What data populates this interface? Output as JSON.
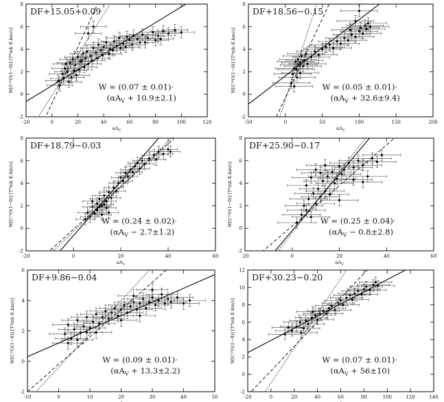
{
  "chart_data": [
    {
      "type": "scatter",
      "title": "DF+15.05+0.09",
      "xlabel": "αA",
      "xlabel_sub": "V",
      "ylabel": "W[C¹⁸O(1−0)] [T*mb K.km/s]",
      "xlim": [
        -20,
        120
      ],
      "ylim": [
        -2,
        8
      ],
      "xticks": [
        -20,
        0,
        20,
        40,
        60,
        80,
        100,
        120
      ],
      "yticks": [
        -2,
        0,
        2,
        4,
        6,
        8
      ],
      "equation_line1": "W = (0.07 ± 0.01)·",
      "equation_line2": "(αA",
      "equation_line2_sub": "V",
      "equation_line2_tail": " + 10.9±2.1)",
      "lines": [
        {
          "style": "solid",
          "slope": 0.07,
          "intercept": 0.76
        },
        {
          "style": "dotted",
          "slope": 0.18,
          "intercept": -0.1
        },
        {
          "style": "dashed",
          "slope": 0.25,
          "intercept": -0.8
        }
      ],
      "points": [
        [
          5,
          1.2
        ],
        [
          8,
          1.8
        ],
        [
          10,
          2.3
        ],
        [
          12,
          2.0
        ],
        [
          14,
          2.8
        ],
        [
          15,
          1.5
        ],
        [
          16,
          3.1
        ],
        [
          18,
          2.6
        ],
        [
          20,
          3.3
        ],
        [
          22,
          2.9
        ],
        [
          24,
          3.6
        ],
        [
          25,
          2.4
        ],
        [
          27,
          3.8
        ],
        [
          30,
          3.4
        ],
        [
          32,
          4.1
        ],
        [
          34,
          3.7
        ],
        [
          36,
          4.4
        ],
        [
          38,
          3.9
        ],
        [
          40,
          4.2
        ],
        [
          42,
          4.6
        ],
        [
          45,
          4.0
        ],
        [
          48,
          4.7
        ],
        [
          50,
          4.3
        ],
        [
          52,
          5.0
        ],
        [
          55,
          4.5
        ],
        [
          58,
          5.1
        ],
        [
          60,
          4.8
        ],
        [
          63,
          5.2
        ],
        [
          66,
          4.9
        ],
        [
          70,
          5.3
        ],
        [
          74,
          5.0
        ],
        [
          78,
          5.5
        ],
        [
          82,
          5.2
        ],
        [
          86,
          5.6
        ],
        [
          90,
          5.4
        ],
        [
          95,
          5.7
        ],
        [
          100,
          5.5
        ],
        [
          6,
          0.8
        ],
        [
          9,
          1.4
        ],
        [
          11,
          2.7
        ],
        [
          13,
          1.1
        ],
        [
          17,
          2.1
        ],
        [
          19,
          1.7
        ],
        [
          21,
          2.2
        ],
        [
          23,
          3.0
        ],
        [
          26,
          3.2
        ],
        [
          28,
          2.7
        ],
        [
          31,
          3.0
        ],
        [
          35,
          3.2
        ],
        [
          39,
          3.5
        ],
        [
          44,
          3.6
        ],
        [
          47,
          3.9
        ],
        [
          53,
          4.1
        ],
        [
          57,
          4.2
        ],
        [
          62,
          4.4
        ],
        [
          68,
          4.6
        ],
        [
          72,
          4.6
        ],
        [
          80,
          4.8
        ],
        [
          84,
          4.9
        ],
        [
          32,
          6.0
        ],
        [
          28,
          5.4
        ]
      ],
      "xerr": 10,
      "yerr": 0.5
    },
    {
      "type": "scatter",
      "title": "DF+18.56−0.15",
      "xlabel": "αA",
      "xlabel_sub": "V",
      "ylabel": "W[C¹⁸O(1−0)] [T*mb K.km/s]",
      "xlim": [
        -50,
        200
      ],
      "ylim": [
        -2,
        8
      ],
      "xticks": [
        -50,
        0,
        50,
        100,
        150,
        200
      ],
      "yticks": [
        -2,
        0,
        2,
        4,
        6,
        8
      ],
      "equation_line1": "W = (0.05 ± 0.01)·",
      "equation_line2": "(αA",
      "equation_line2_sub": "V",
      "equation_line2_tail": " + 32.6±9.4)",
      "lines": [
        {
          "style": "solid",
          "slope": 0.05,
          "intercept": 1.63
        },
        {
          "style": "dotted",
          "slope": 0.2,
          "intercept": -0.5
        },
        {
          "style": "dashed",
          "slope": 0.14,
          "intercept": -0.3
        }
      ],
      "points": [
        [
          8,
          1.0
        ],
        [
          10,
          1.8
        ],
        [
          12,
          2.3
        ],
        [
          14,
          2.9
        ],
        [
          15,
          2.2
        ],
        [
          17,
          3.1
        ],
        [
          18,
          2.6
        ],
        [
          20,
          2.8
        ],
        [
          22,
          3.4
        ],
        [
          24,
          2.5
        ],
        [
          26,
          3.0
        ],
        [
          28,
          3.6
        ],
        [
          30,
          2.7
        ],
        [
          35,
          3.3
        ],
        [
          40,
          3.8
        ],
        [
          45,
          3.5
        ],
        [
          50,
          4.0
        ],
        [
          55,
          4.2
        ],
        [
          60,
          4.4
        ],
        [
          65,
          4.1
        ],
        [
          70,
          4.7
        ],
        [
          75,
          4.5
        ],
        [
          80,
          5.0
        ],
        [
          85,
          4.8
        ],
        [
          90,
          5.3
        ],
        [
          95,
          5.1
        ],
        [
          100,
          5.6
        ],
        [
          102,
          5.9
        ],
        [
          105,
          5.4
        ],
        [
          108,
          6.1
        ],
        [
          110,
          5.8
        ],
        [
          112,
          6.3
        ],
        [
          115,
          6.0
        ],
        [
          100,
          7.4
        ],
        [
          95,
          6.5
        ],
        [
          88,
          5.7
        ],
        [
          12,
          0.7
        ],
        [
          16,
          1.5
        ],
        [
          20,
          1.9
        ]
      ],
      "xerr": 25,
      "yerr": 0.5
    },
    {
      "type": "scatter",
      "title": "DF+18.79−0.03",
      "xlabel": "αA",
      "xlabel_sub": "V",
      "ylabel": "W[C¹⁸O(1−0)] [T*mb K.km/s]",
      "xlim": [
        -20,
        60
      ],
      "ylim": [
        -2,
        8
      ],
      "xticks": [
        -20,
        0,
        20,
        40,
        60
      ],
      "yticks": [
        -2,
        0,
        2,
        4,
        6,
        8
      ],
      "equation_line1": "W = (0.24 ± 0.02)·",
      "equation_line2": "(αA",
      "equation_line2_sub": "V",
      "equation_line2_tail": " − 2.7±1.2)",
      "lines": [
        {
          "style": "solid",
          "slope": 0.24,
          "intercept": -0.65
        },
        {
          "style": "dotted",
          "slope": 0.2,
          "intercept": -0.3
        },
        {
          "style": "dashed",
          "slope": 0.19,
          "intercept": -0.1
        }
      ],
      "points": [
        [
          5,
          0.8
        ],
        [
          6,
          1.4
        ],
        [
          7,
          1.0
        ],
        [
          8,
          1.9
        ],
        [
          9,
          1.3
        ],
        [
          10,
          2.2
        ],
        [
          10,
          1.6
        ],
        [
          11,
          2.6
        ],
        [
          12,
          2.0
        ],
        [
          12,
          1.2
        ],
        [
          13,
          2.9
        ],
        [
          14,
          2.4
        ],
        [
          14,
          1.8
        ],
        [
          15,
          3.2
        ],
        [
          16,
          2.7
        ],
        [
          17,
          3.6
        ],
        [
          18,
          3.3
        ],
        [
          19,
          4.0
        ],
        [
          20,
          4.5
        ],
        [
          21,
          4.2
        ],
        [
          22,
          4.9
        ],
        [
          23,
          4.6
        ],
        [
          24,
          5.2
        ],
        [
          25,
          5.0
        ],
        [
          26,
          5.5
        ],
        [
          27,
          5.8
        ],
        [
          28,
          5.3
        ],
        [
          29,
          6.0
        ],
        [
          30,
          5.7
        ],
        [
          32,
          6.2
        ],
        [
          34,
          6.5
        ],
        [
          35,
          6.1
        ],
        [
          36,
          6.8
        ],
        [
          38,
          6.6
        ],
        [
          40,
          7.0
        ],
        [
          41,
          6.8
        ],
        [
          8,
          2.4
        ],
        [
          11,
          1.9
        ],
        [
          13,
          2.1
        ],
        [
          15,
          1.4
        ]
      ],
      "xerr": 4,
      "yerr": 0.5
    },
    {
      "type": "scatter",
      "title": "DF+25.90−0.17",
      "xlabel": "αA",
      "xlabel_sub": "V",
      "ylabel": "W[C¹⁸O(1−0)] [T*mb K.km/s]",
      "xlim": [
        -20,
        60
      ],
      "ylim": [
        -2,
        8
      ],
      "xticks": [
        -20,
        0,
        20,
        40,
        60
      ],
      "yticks": [
        -2,
        0,
        2,
        4,
        6,
        8
      ],
      "equation_line1": "W = (0.25 ± 0.04)·",
      "equation_line2": "(αA",
      "equation_line2_sub": "V",
      "equation_line2_tail": " − 0.8±2.8)",
      "lines": [
        {
          "style": "solid",
          "slope": 0.25,
          "intercept": -0.2
        },
        {
          "style": "dotted",
          "slope": 0.27,
          "intercept": -0.4
        },
        {
          "style": "dashed",
          "slope": 0.18,
          "intercept": 0.2
        }
      ],
      "points": [
        [
          2,
          0.5
        ],
        [
          4,
          1.2
        ],
        [
          5,
          2.0
        ],
        [
          6,
          1.6
        ],
        [
          7,
          2.6
        ],
        [
          8,
          1.0
        ],
        [
          9,
          3.1
        ],
        [
          10,
          2.2
        ],
        [
          11,
          3.5
        ],
        [
          12,
          2.8
        ],
        [
          13,
          4.2
        ],
        [
          14,
          3.3
        ],
        [
          15,
          4.6
        ],
        [
          16,
          3.0
        ],
        [
          17,
          5.0
        ],
        [
          18,
          4.0
        ],
        [
          19,
          4.4
        ],
        [
          20,
          5.5
        ],
        [
          21,
          4.8
        ],
        [
          22,
          5.2
        ],
        [
          24,
          5.8
        ],
        [
          26,
          5.4
        ],
        [
          28,
          6.0
        ],
        [
          30,
          5.6
        ],
        [
          32,
          4.6
        ],
        [
          34,
          6.2
        ],
        [
          36,
          5.9
        ],
        [
          38,
          6.5
        ],
        [
          8,
          4.5
        ],
        [
          10,
          5.2
        ],
        [
          12,
          4.9
        ],
        [
          6,
          3.8
        ],
        [
          14,
          5.6
        ],
        [
          26,
          4.3
        ],
        [
          30,
          4.1
        ],
        [
          20,
          2.5
        ]
      ],
      "xerr": 8,
      "yerr": 0.5
    },
    {
      "type": "scatter",
      "title": "DF+9.86−0.04",
      "xlabel": "αA",
      "xlabel_sub": "V",
      "ylabel": "W[C¹⁸O(1−0)] [T*mb K.km/s]",
      "xlim": [
        -10,
        50
      ],
      "ylim": [
        -2,
        6
      ],
      "xticks": [
        -10,
        0,
        10,
        20,
        30,
        40,
        50
      ],
      "yticks": [
        -2,
        0,
        2,
        4,
        6
      ],
      "equation_line1": "W = (0.09 ± 0.01)·",
      "equation_line2": "(αA",
      "equation_line2_sub": "V",
      "equation_line2_tail": " + 13.3±2.2)",
      "lines": [
        {
          "style": "solid",
          "slope": 0.09,
          "intercept": 1.2
        },
        {
          "style": "dotted",
          "slope": 0.22,
          "intercept": -0.4
        },
        {
          "style": "dashed",
          "slope": 0.18,
          "intercept": -0.2
        }
      ],
      "points": [
        [
          2,
          1.8
        ],
        [
          3,
          2.4
        ],
        [
          4,
          1.5
        ],
        [
          5,
          2.1
        ],
        [
          6,
          2.7
        ],
        [
          7,
          1.9
        ],
        [
          8,
          2.3
        ],
        [
          9,
          2.9
        ],
        [
          10,
          2.2
        ],
        [
          11,
          2.6
        ],
        [
          12,
          3.1
        ],
        [
          13,
          2.5
        ],
        [
          14,
          2.9
        ],
        [
          15,
          3.3
        ],
        [
          16,
          2.8
        ],
        [
          17,
          3.2
        ],
        [
          18,
          3.5
        ],
        [
          19,
          3.0
        ],
        [
          20,
          3.4
        ],
        [
          21,
          3.7
        ],
        [
          22,
          3.2
        ],
        [
          23,
          3.6
        ],
        [
          24,
          3.9
        ],
        [
          25,
          3.4
        ],
        [
          26,
          3.8
        ],
        [
          27,
          4.1
        ],
        [
          28,
          3.5
        ],
        [
          29,
          3.9
        ],
        [
          30,
          4.2
        ],
        [
          31,
          3.7
        ],
        [
          32,
          4.0
        ],
        [
          33,
          4.4
        ],
        [
          34,
          3.8
        ],
        [
          35,
          4.1
        ],
        [
          36,
          3.9
        ],
        [
          38,
          4.2
        ],
        [
          40,
          3.8
        ],
        [
          42,
          4.0
        ],
        [
          3,
          1.2
        ],
        [
          6,
          1.4
        ],
        [
          9,
          1.9
        ],
        [
          12,
          1.9
        ],
        [
          20,
          2.7
        ],
        [
          26,
          3.0
        ],
        [
          30,
          4.7
        ],
        [
          24,
          4.3
        ]
      ],
      "xerr": 5,
      "yerr": 0.4
    },
    {
      "type": "scatter",
      "title": "DF+30.23−0.20",
      "xlabel": "αA",
      "xlabel_sub": "V",
      "ylabel": "W[C¹⁸O(1−0)] [T*mb K.km/s]",
      "xlim": [
        -20,
        140
      ],
      "ylim": [
        -2,
        12
      ],
      "xticks": [
        -20,
        0,
        20,
        40,
        60,
        80,
        100,
        120,
        140
      ],
      "yticks": [
        -2,
        0,
        2,
        4,
        6,
        8,
        10,
        12
      ],
      "equation_line1": "W = (0.07 ± 0.01)·",
      "equation_line2": "(αA",
      "equation_line2_sub": "V",
      "equation_line2_tail": " + 56±10)",
      "lines": [
        {
          "style": "solid",
          "slope": 0.07,
          "intercept": 3.9
        },
        {
          "style": "dotted",
          "slope": 0.2,
          "intercept": -1.0
        },
        {
          "style": "dashed",
          "slope": 0.14,
          "intercept": 0.4
        }
      ],
      "points": [
        [
          12,
          4.6
        ],
        [
          18,
          5.0
        ],
        [
          22,
          5.5
        ],
        [
          25,
          6.0
        ],
        [
          28,
          5.3
        ],
        [
          30,
          6.2
        ],
        [
          32,
          5.8
        ],
        [
          35,
          6.5
        ],
        [
          38,
          6.8
        ],
        [
          40,
          6.3
        ],
        [
          42,
          7.0
        ],
        [
          45,
          7.3
        ],
        [
          48,
          7.0
        ],
        [
          50,
          7.6
        ],
        [
          52,
          7.9
        ],
        [
          55,
          7.4
        ],
        [
          58,
          8.2
        ],
        [
          60,
          8.5
        ],
        [
          62,
          8.0
        ],
        [
          65,
          8.8
        ],
        [
          68,
          9.1
        ],
        [
          70,
          8.6
        ],
        [
          72,
          9.3
        ],
        [
          75,
          9.6
        ],
        [
          78,
          9.2
        ],
        [
          80,
          9.8
        ],
        [
          82,
          10.1
        ],
        [
          85,
          9.7
        ],
        [
          88,
          10.3
        ],
        [
          90,
          10.6
        ],
        [
          92,
          10.2
        ],
        [
          15,
          5.4
        ],
        [
          26,
          4.8
        ],
        [
          36,
          7.2
        ]
      ],
      "xerr": 14,
      "yerr": 0.6
    }
  ]
}
